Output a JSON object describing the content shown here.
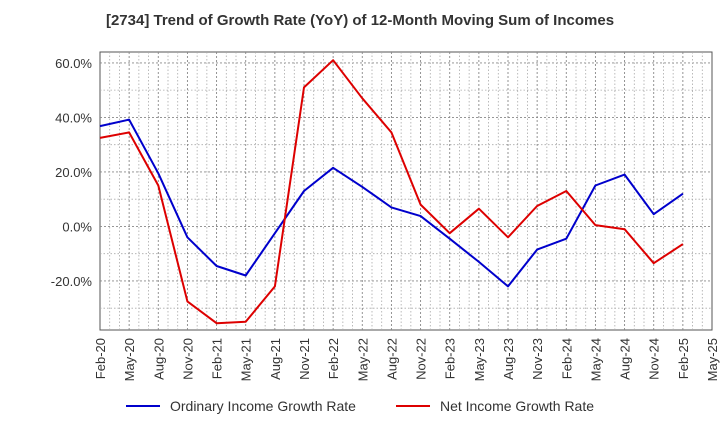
{
  "chart_data": {
    "type": "line",
    "title": "[2734]  Trend of Growth Rate (YoY) of 12-Month Moving Sum of Incomes",
    "xlabel": "",
    "ylabel": "",
    "ylim": [
      -38,
      64
    ],
    "yticks": [
      60,
      40,
      20,
      0,
      -20
    ],
    "ytick_labels": [
      "60.0%",
      "40.0%",
      "20.0%",
      "0.0%",
      "-20.0%"
    ],
    "categories": [
      "Feb-20",
      "May-20",
      "Aug-20",
      "Nov-20",
      "Feb-21",
      "May-21",
      "Aug-21",
      "Nov-21",
      "Feb-22",
      "May-22",
      "Aug-22",
      "Nov-22",
      "Feb-23",
      "May-23",
      "Aug-23",
      "Nov-23",
      "Feb-24",
      "May-24",
      "Aug-24",
      "Nov-24",
      "Feb-25",
      "May-25"
    ],
    "series": [
      {
        "name": "Ordinary Income Growth Rate",
        "color": "#0000cc",
        "values": [
          36.8,
          39.2,
          19.5,
          -4.0,
          -14.5,
          -18.0,
          -2.5,
          13.0,
          21.5,
          14.5,
          7.0,
          3.8,
          -4.5,
          -13.0,
          -22.0,
          -8.5,
          -4.5,
          15.0,
          19.0,
          4.5,
          12.0,
          null
        ]
      },
      {
        "name": "Net Income Growth Rate",
        "color": "#dd0000",
        "values": [
          32.5,
          34.5,
          15.0,
          -27.5,
          -35.5,
          -35.0,
          -22.0,
          51.0,
          61.0,
          47.0,
          34.5,
          8.0,
          -2.5,
          6.5,
          -4.0,
          7.5,
          13.0,
          0.5,
          -1.0,
          -13.5,
          -6.5,
          null
        ]
      }
    ],
    "grid": true,
    "legend_position": "bottom"
  }
}
